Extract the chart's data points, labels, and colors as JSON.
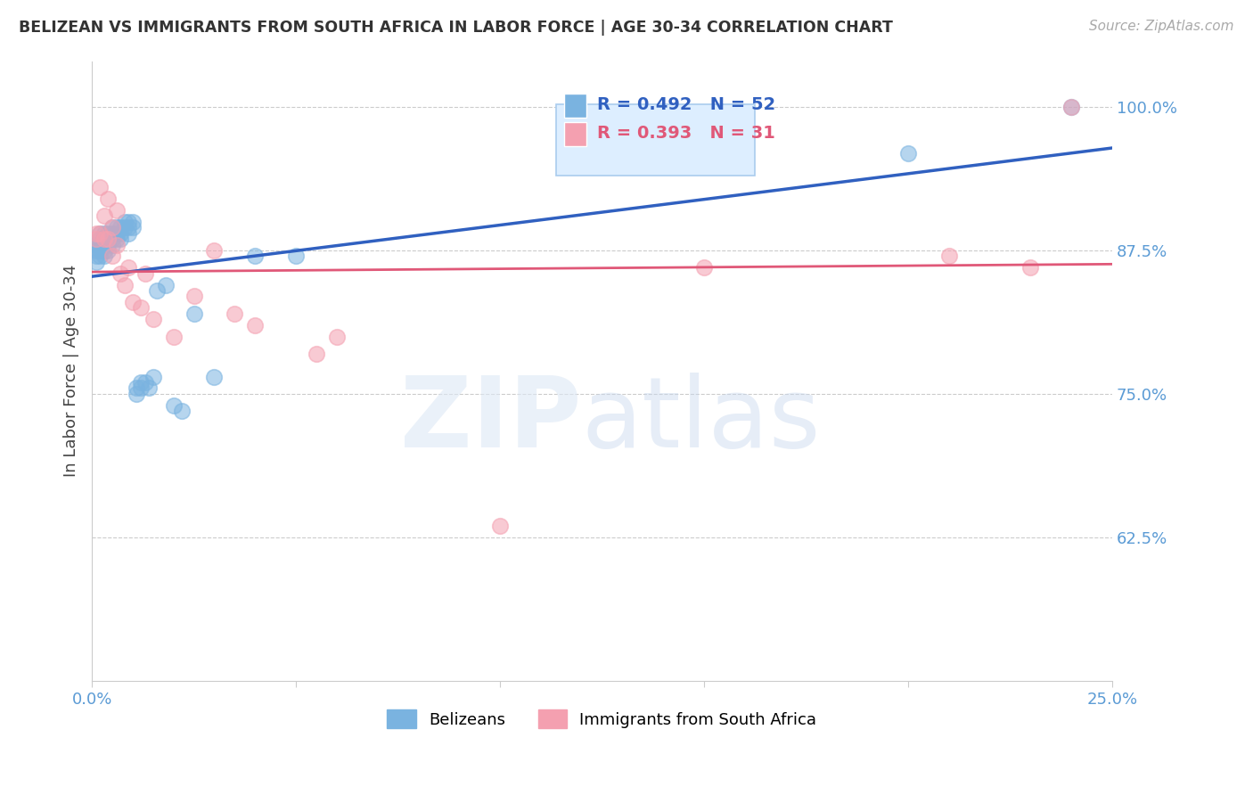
{
  "title": "BELIZEAN VS IMMIGRANTS FROM SOUTH AFRICA IN LABOR FORCE | AGE 30-34 CORRELATION CHART",
  "source": "Source: ZipAtlas.com",
  "ylabel": "In Labor Force | Age 30-34",
  "xlim": [
    0.0,
    0.25
  ],
  "ylim": [
    0.5,
    1.04
  ],
  "xticks": [
    0.0,
    0.05,
    0.1,
    0.15,
    0.2,
    0.25
  ],
  "xticklabels": [
    "0.0%",
    "",
    "",
    "",
    "",
    "25.0%"
  ],
  "yticks": [
    0.625,
    0.75,
    0.875,
    1.0
  ],
  "yticklabels": [
    "62.5%",
    "75.0%",
    "87.5%",
    "100.0%"
  ],
  "tick_color": "#5b9bd5",
  "grid_color": "#cccccc",
  "background_color": "#ffffff",
  "belizean_color": "#7ab3e0",
  "sa_color": "#f4a0b0",
  "blue_line_color": "#3060c0",
  "pink_line_color": "#e05878",
  "R_belizean": 0.492,
  "N_belizean": 52,
  "R_sa": 0.393,
  "N_sa": 31,
  "belizean_x": [
    0.001,
    0.001,
    0.001,
    0.001,
    0.002,
    0.002,
    0.002,
    0.002,
    0.002,
    0.003,
    0.003,
    0.003,
    0.003,
    0.003,
    0.004,
    0.004,
    0.004,
    0.004,
    0.005,
    0.005,
    0.005,
    0.005,
    0.006,
    0.006,
    0.006,
    0.007,
    0.007,
    0.007,
    0.008,
    0.008,
    0.009,
    0.009,
    0.009,
    0.01,
    0.01,
    0.011,
    0.011,
    0.012,
    0.012,
    0.013,
    0.014,
    0.015,
    0.016,
    0.018,
    0.02,
    0.022,
    0.025,
    0.03,
    0.04,
    0.05,
    0.2,
    0.24
  ],
  "belizean_y": [
    0.88,
    0.875,
    0.87,
    0.865,
    0.89,
    0.885,
    0.88,
    0.875,
    0.87,
    0.89,
    0.885,
    0.88,
    0.875,
    0.87,
    0.89,
    0.885,
    0.88,
    0.875,
    0.895,
    0.89,
    0.885,
    0.88,
    0.895,
    0.89,
    0.885,
    0.895,
    0.89,
    0.885,
    0.9,
    0.895,
    0.9,
    0.895,
    0.89,
    0.9,
    0.895,
    0.755,
    0.75,
    0.76,
    0.755,
    0.76,
    0.755,
    0.765,
    0.84,
    0.845,
    0.74,
    0.735,
    0.82,
    0.765,
    0.87,
    0.87,
    0.96,
    1.0
  ],
  "sa_x": [
    0.001,
    0.001,
    0.002,
    0.002,
    0.003,
    0.003,
    0.004,
    0.004,
    0.005,
    0.005,
    0.006,
    0.006,
    0.007,
    0.008,
    0.009,
    0.01,
    0.012,
    0.013,
    0.015,
    0.02,
    0.025,
    0.03,
    0.035,
    0.04,
    0.055,
    0.06,
    0.1,
    0.15,
    0.21,
    0.23,
    0.24
  ],
  "sa_y": [
    0.89,
    0.885,
    0.93,
    0.89,
    0.905,
    0.885,
    0.92,
    0.885,
    0.895,
    0.87,
    0.91,
    0.88,
    0.855,
    0.845,
    0.86,
    0.83,
    0.825,
    0.855,
    0.815,
    0.8,
    0.835,
    0.875,
    0.82,
    0.81,
    0.785,
    0.8,
    0.635,
    0.86,
    0.87,
    0.86,
    1.0
  ]
}
